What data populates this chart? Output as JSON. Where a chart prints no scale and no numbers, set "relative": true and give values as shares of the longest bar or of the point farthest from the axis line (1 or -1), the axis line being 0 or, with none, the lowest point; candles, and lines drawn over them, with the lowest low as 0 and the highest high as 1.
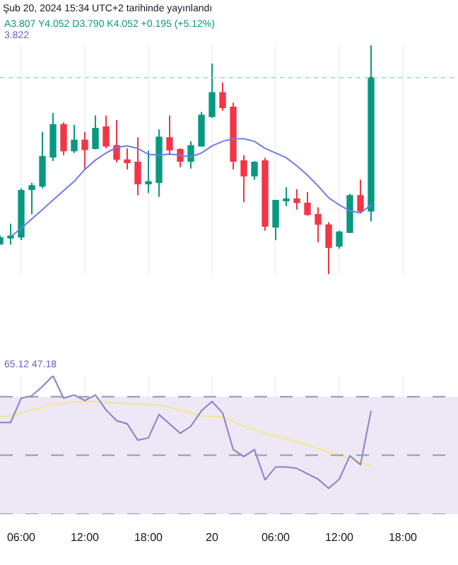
{
  "chart_data": [
    {
      "type": "candlestick",
      "title": "Şub 20, 2024 15:34 UTC+2 tarihinde yayınlandı",
      "relative": true,
      "grid": "x",
      "legend": false,
      "tick_labels": false,
      "annotations": [
        "A3.807 Y4.052 D3.790 K4.052 +0.195 (+5.12%)",
        "3.822"
      ],
      "x": [
        "2024-02-19T04:00",
        "2024-02-19T05:00",
        "2024-02-19T06:00",
        "2024-02-19T07:00",
        "2024-02-19T08:00",
        "2024-02-19T09:00",
        "2024-02-19T10:00",
        "2024-02-19T11:00",
        "2024-02-19T12:00",
        "2024-02-19T13:00",
        "2024-02-19T14:00",
        "2024-02-19T15:00",
        "2024-02-19T16:00",
        "2024-02-19T17:00",
        "2024-02-19T18:00",
        "2024-02-19T19:00",
        "2024-02-19T20:00",
        "2024-02-19T21:00",
        "2024-02-19T22:00",
        "2024-02-19T23:00",
        "2024-02-20T00:00",
        "2024-02-20T01:00",
        "2024-02-20T02:00",
        "2024-02-20T03:00",
        "2024-02-20T04:00",
        "2024-02-20T05:00",
        "2024-02-20T06:00",
        "2024-02-20T07:00",
        "2024-02-20T08:00",
        "2024-02-20T09:00",
        "2024-02-20T10:00",
        "2024-02-20T11:00",
        "2024-02-20T12:00",
        "2024-02-20T13:00",
        "2024-02-20T14:00",
        "2024-02-20T15:00"
      ],
      "ohlc": [
        [
          0.132,
          0.169,
          0.128,
          0.158
        ],
        [
          0.158,
          0.22,
          0.128,
          0.165
        ],
        [
          0.163,
          0.374,
          0.148,
          0.364
        ],
        [
          0.37,
          0.399,
          0.261,
          0.385
        ],
        [
          0.385,
          0.621,
          0.374,
          0.512
        ],
        [
          0.512,
          0.704,
          0.494,
          0.652
        ],
        [
          0.652,
          0.663,
          0.519,
          0.539
        ],
        [
          0.539,
          0.652,
          0.529,
          0.584
        ],
        [
          0.584,
          0.621,
          0.457,
          0.545
        ],
        [
          0.549,
          0.693,
          0.545,
          0.636
        ],
        [
          0.642,
          0.693,
          0.549,
          0.56
        ],
        [
          0.56,
          0.673,
          0.488,
          0.502
        ],
        [
          0.498,
          0.549,
          0.457,
          0.488
        ],
        [
          0.488,
          0.597,
          0.344,
          0.395
        ],
        [
          0.395,
          0.539,
          0.354,
          0.403
        ],
        [
          0.401,
          0.632,
          0.337,
          0.597
        ],
        [
          0.595,
          0.693,
          0.519,
          0.543
        ],
        [
          0.543,
          0.549,
          0.467,
          0.494
        ],
        [
          0.494,
          0.58,
          0.461,
          0.56
        ],
        [
          0.56,
          0.708,
          0.556,
          0.693
        ],
        [
          0.689,
          0.92,
          0.683,
          0.792
        ],
        [
          0.792,
          0.837,
          0.714,
          0.728
        ],
        [
          0.728,
          0.749,
          0.457,
          0.494
        ],
        [
          0.494,
          0.519,
          0.313,
          0.43
        ],
        [
          0.43,
          0.494,
          0.412,
          0.488
        ],
        [
          0.494,
          0.508,
          0.189,
          0.21
        ],
        [
          0.206,
          0.323,
          0.148,
          0.321
        ],
        [
          0.321,
          0.379,
          0.296,
          0.327
        ],
        [
          0.327,
          0.37,
          0.282,
          0.313
        ],
        [
          0.309,
          0.358,
          0.255,
          0.261
        ],
        [
          0.259,
          0.292,
          0.138,
          0.218
        ],
        [
          0.214,
          0.226,
          0,
          0.117
        ],
        [
          0.123,
          0.189,
          0.111,
          0.183
        ],
        [
          0.183,
          0.35,
          0.179,
          0.342
        ],
        [
          0.342,
          0.412,
          0.267,
          0.276
        ],
        [
          0.276,
          1,
          0.23,
          0.858
        ]
      ],
      "colors": [
        "#089981",
        "#089981",
        "#089981",
        "#089981",
        "#089981",
        "#089981",
        "#f23645",
        "#089981",
        "#f23645",
        "#089981",
        "#f23645",
        "#f23645",
        "#f23645",
        "#f23645",
        "#089981",
        "#089981",
        "#f23645",
        "#f23645",
        "#089981",
        "#089981",
        "#089981",
        "#f23645",
        "#f23645",
        "#f23645",
        "#089981",
        "#f23645",
        "#089981",
        "#089981",
        "#f23645",
        "#f23645",
        "#f23645",
        "#f23645",
        "#089981",
        "#089981",
        "#f23645",
        "#089981"
      ],
      "series": [
        {
          "type": "line",
          "color": "#6f7ce6",
          "x": [
            "2024-02-19T05:00",
            "2024-02-19T06:00",
            "2024-02-19T07:00",
            "2024-02-19T08:00",
            "2024-02-19T09:00",
            "2024-02-19T10:00",
            "2024-02-19T11:00",
            "2024-02-19T12:00",
            "2024-02-19T13:00",
            "2024-02-19T14:00",
            "2024-02-19T15:00",
            "2024-02-19T16:00",
            "2024-02-19T17:00",
            "2024-02-19T18:00",
            "2024-02-19T19:00",
            "2024-02-19T20:00",
            "2024-02-19T21:00",
            "2024-02-19T22:00",
            "2024-02-19T23:00",
            "2024-02-20T00:00",
            "2024-02-20T01:00",
            "2024-02-20T02:00",
            "2024-02-20T03:00",
            "2024-02-20T04:00",
            "2024-02-20T05:00",
            "2024-02-20T06:00",
            "2024-02-20T07:00",
            "2024-02-20T08:00",
            "2024-02-20T09:00",
            "2024-02-20T10:00",
            "2024-02-20T11:00",
            "2024-02-20T12:00",
            "2024-02-20T13:00",
            "2024-02-20T14:00",
            "2024-02-20T15:00"
          ],
          "values": [
            0.163,
            0.2,
            0.241,
            0.282,
            0.323,
            0.364,
            0.405,
            0.457,
            0.498,
            0.529,
            0.553,
            0.56,
            0.549,
            0.523,
            0.519,
            0.525,
            0.519,
            0.512,
            0.529,
            0.56,
            0.58,
            0.591,
            0.591,
            0.58,
            0.549,
            0.529,
            0.508,
            0.473,
            0.432,
            0.385,
            0.333,
            0.302,
            0.276,
            0.267,
            0.302
          ]
        }
      ],
      "ref_lines": [
        {
          "axis": "y",
          "value": 0.858,
          "color": "#b2dfdb",
          "line_style": "dotted"
        }
      ],
      "xlim": [
        "2024-02-19T04:00",
        "2024-02-20T23:12"
      ],
      "xticks": [
        {
          "value": "2024-02-19T06:00",
          "label": null
        },
        {
          "value": "2024-02-19T12:00",
          "label": null
        },
        {
          "value": "2024-02-19T18:00",
          "label": null
        },
        {
          "value": "2024-02-20T00:00",
          "label": null
        },
        {
          "value": "2024-02-20T06:00",
          "label": null
        },
        {
          "value": "2024-02-20T12:00",
          "label": null
        },
        {
          "value": "2024-02-20T18:00",
          "label": null
        }
      ]
    },
    {
      "type": "line",
      "relative": true,
      "grid": "x",
      "legend": false,
      "tick_labels": "x",
      "marker": "none",
      "annotations": [
        "65.12 47.18"
      ],
      "x": [
        "2024-02-19T04:00",
        "2024-02-19T05:00",
        "2024-02-19T06:00",
        "2024-02-19T07:00",
        "2024-02-19T08:00",
        "2024-02-19T09:00",
        "2024-02-19T10:00",
        "2024-02-19T11:00",
        "2024-02-19T12:00",
        "2024-02-19T13:00",
        "2024-02-19T14:00",
        "2024-02-19T15:00",
        "2024-02-19T16:00",
        "2024-02-19T17:00",
        "2024-02-19T18:00",
        "2024-02-19T19:00",
        "2024-02-19T20:00",
        "2024-02-19T21:00",
        "2024-02-19T22:00",
        "2024-02-19T23:00",
        "2024-02-20T00:00",
        "2024-02-20T01:00",
        "2024-02-20T02:00",
        "2024-02-20T03:00",
        "2024-02-20T04:00",
        "2024-02-20T05:00",
        "2024-02-20T06:00",
        "2024-02-20T07:00",
        "2024-02-20T08:00",
        "2024-02-20T09:00",
        "2024-02-20T10:00",
        "2024-02-20T11:00",
        "2024-02-20T12:00",
        "2024-02-20T13:00",
        "2024-02-20T14:00",
        "2024-02-20T15:00"
      ],
      "series": [
        {
          "color": "#f2e88a",
          "x": [
            "2024-02-19T04:00",
            "2024-02-19T05:00",
            "2024-02-19T06:00",
            "2024-02-19T08:00",
            "2024-02-19T09:00",
            "2024-02-19T11:00",
            "2024-02-19T13:00",
            "2024-02-19T15:00",
            "2024-02-19T17:00",
            "2024-02-19T19:00",
            "2024-02-19T21:00",
            "2024-02-19T23:00",
            "2024-02-20T01:00",
            "2024-02-20T03:00",
            "2024-02-20T05:00",
            "2024-02-20T07:00",
            "2024-02-20T09:00",
            "2024-02-20T11:00",
            "2024-02-20T13:00",
            "2024-02-20T15:00"
          ],
          "values": [
            0.703,
            0.709,
            0.736,
            0.77,
            0.794,
            0.811,
            0.814,
            0.804,
            0.794,
            0.787,
            0.753,
            0.709,
            0.703,
            0.635,
            0.584,
            0.544,
            0.5,
            0.449,
            0.399,
            0.348
          ]
        },
        {
          "color": "#8a7fc8",
          "values": [
            0.662,
            0.662,
            0.838,
            0.855,
            0.922,
            1,
            0.838,
            0.861,
            0.821,
            0.861,
            0.753,
            0.676,
            0.652,
            0.534,
            0.551,
            0.72,
            0.652,
            0.584,
            0.635,
            0.747,
            0.814,
            0.73,
            0.466,
            0.416,
            0.466,
            0.247,
            0.341,
            0.341,
            0.331,
            0.291,
            0.253,
            0.186,
            0.253,
            0.422,
            0.358,
            0.747
          ]
        }
      ],
      "bands": [
        {
          "axis": "y",
          "from": 0,
          "to": 0.848,
          "color": "#ede7f6"
        }
      ],
      "ref_lines": [
        {
          "axis": "y",
          "value": 0.848,
          "color": "#9598a1",
          "line_style": "dashed"
        },
        {
          "axis": "y",
          "value": 0.426,
          "color": "#9598a1",
          "line_style": "dashed"
        },
        {
          "axis": "y",
          "value": 0,
          "color": "#9598a1",
          "line_style": "dashed"
        }
      ],
      "xlim": [
        "2024-02-19T04:00",
        "2024-02-20T23:12"
      ],
      "xticks": [
        {
          "value": "2024-02-19T06:00",
          "label": "06:00"
        },
        {
          "value": "2024-02-19T12:00",
          "label": "12:00"
        },
        {
          "value": "2024-02-19T18:00",
          "label": "18:00"
        },
        {
          "value": "2024-02-20T00:00",
          "label": "20"
        },
        {
          "value": "2024-02-20T06:00",
          "label": "06:00"
        },
        {
          "value": "2024-02-20T12:00",
          "label": "12:00"
        },
        {
          "value": "2024-02-20T18:00",
          "label": "18:00"
        }
      ]
    }
  ]
}
